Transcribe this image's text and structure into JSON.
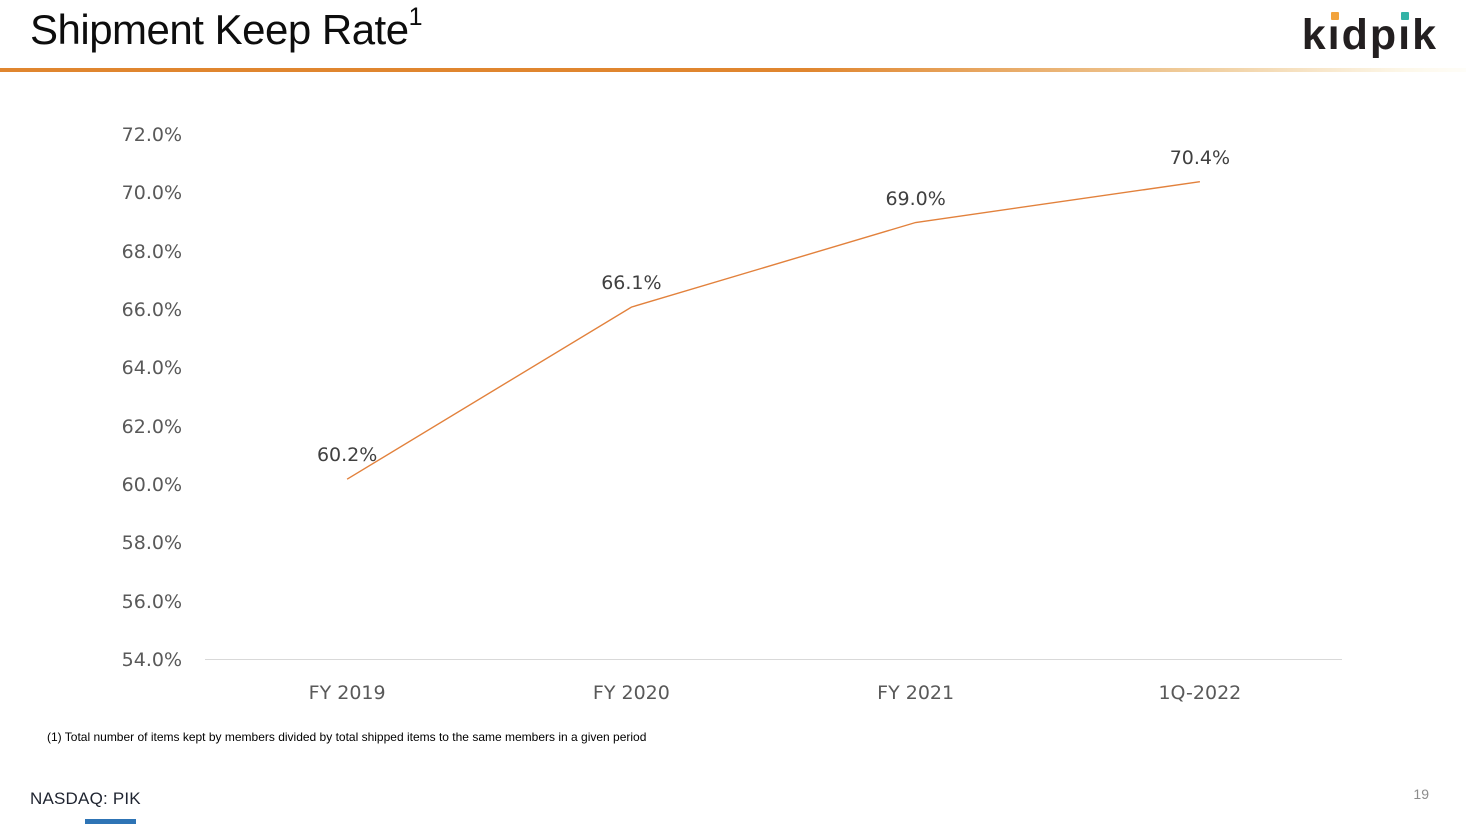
{
  "slide": {
    "title": "Shipment Keep Rate",
    "title_superscript": "1",
    "footnote": "(1) Total number of items kept by members divided by total shipped items to the same members in a given period",
    "ticker": "NASDAQ: PIK",
    "page_number": "19"
  },
  "logo": {
    "name": "kidpik",
    "letters": [
      "k",
      "i",
      "d",
      "p",
      "i",
      "k"
    ],
    "dot_colors": [
      "#F2A33C",
      "#33B3A6"
    ],
    "text_color": "#231F20"
  },
  "colors": {
    "accent_line": "#E0862F",
    "accent_line_mid": "#F0CE9E",
    "accent_line_fade": "#FDF8EA",
    "series_line": "#E2813C",
    "axis_line": "#D9D9D9",
    "axis_label": "#595959",
    "data_label": "#404040",
    "ticker_text": "#1F2430",
    "page_number": "#8C8C8C",
    "bottom_bar": "#2E74B5"
  },
  "chart_data": {
    "type": "line",
    "title": "Shipment Keep Rate",
    "categories": [
      "FY 2019",
      "FY 2020",
      "FY 2021",
      "1Q-2022"
    ],
    "values": [
      60.2,
      66.1,
      69.0,
      70.4
    ],
    "data_labels": [
      "60.2%",
      "66.1%",
      "69.0%",
      "70.4%"
    ],
    "y_ticks": [
      "72.0%",
      "70.0%",
      "68.0%",
      "66.0%",
      "64.0%",
      "62.0%",
      "60.0%",
      "58.0%",
      "56.0%",
      "54.0%"
    ],
    "ylim": [
      54.0,
      72.0
    ],
    "y_step": 2.0,
    "xlabel": "",
    "ylabel": "",
    "grid": false,
    "legend": "none"
  }
}
